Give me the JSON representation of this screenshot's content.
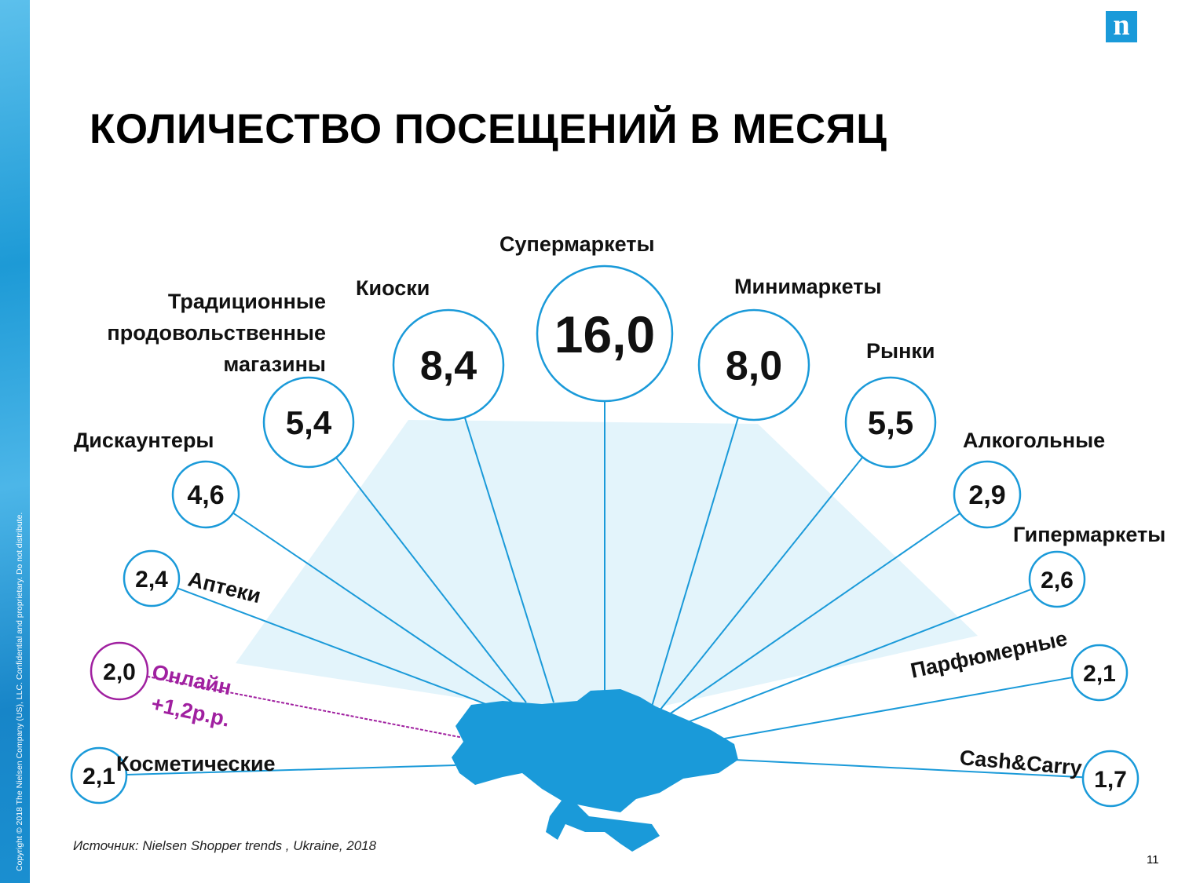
{
  "title": "КОЛИЧЕСТВО ПОСЕЩЕНИЙ В МЕСЯЦ",
  "logo": "n",
  "copyright": "Copyright © 2018 The Nielsen Company (US), LLC. Confidential and proprietary. Do not distribute.",
  "source": "Источник: Nielsen Shopper trends , Ukraine, 2018",
  "page_number": "11",
  "colors": {
    "accent": "#1a9ad9",
    "online": "#a020a0",
    "fan": "#e3f4fb"
  },
  "channels": [
    {
      "label": "Супермаркеты",
      "value": "16,0"
    },
    {
      "label": "Киоски",
      "value": "8,4"
    },
    {
      "label": "Минимаркеты",
      "value": "8,0"
    },
    {
      "label": "Традиционные продовольственные магазины",
      "lines": [
        "Традиционные",
        "продовольственные",
        "магазины"
      ],
      "value": "5,4"
    },
    {
      "label": "Рынки",
      "value": "5,5"
    },
    {
      "label": "Дискаунтеры",
      "value": "4,6"
    },
    {
      "label": "Алкогольные",
      "value": "2,9"
    },
    {
      "label": "Аптеки",
      "value": "2,4"
    },
    {
      "label": "Гипермаркеты",
      "value": "2,6"
    },
    {
      "label": "Онлайн",
      "extra": "+1,2р.р.",
      "value": "2,0",
      "highlight": true
    },
    {
      "label": "Парфюмерные",
      "value": "2,1"
    },
    {
      "label": "Косметические",
      "value": "2,1"
    },
    {
      "label": "Cash&Carry",
      "value": "1,7"
    }
  ]
}
